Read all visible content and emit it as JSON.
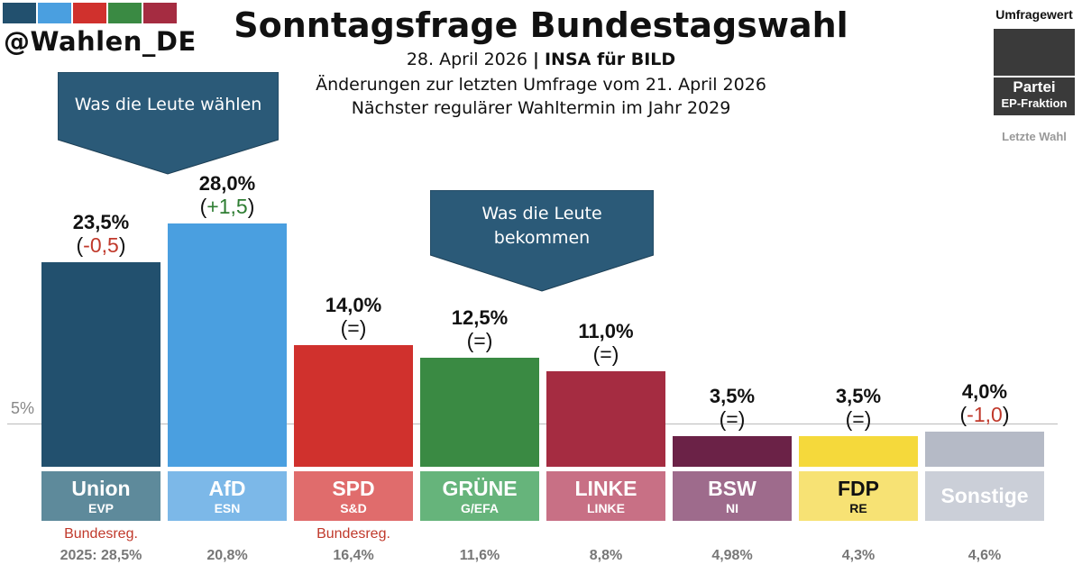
{
  "header": {
    "handle": "@Wahlen_DE",
    "title": "Sonntagsfrage Bundestagswahl",
    "date": "28. April 2026",
    "separator": "|",
    "source": "INSA für BILD",
    "changes_note": "Änderungen zur letzten Umfrage vom 21. April 2026",
    "next_election": "Nächster regulärer Wahltermin im Jahr 2029"
  },
  "logo_colors": [
    "#22506e",
    "#4a9fe0",
    "#d0312d",
    "#3a8a43",
    "#a52c41"
  ],
  "legend": {
    "umfragewert": "Umfragewert",
    "partei": "Partei",
    "ep_fraktion": "EP-Fraktion",
    "letzte_wahl": "Letzte Wahl"
  },
  "callouts": {
    "left": "Was die Leute wählen",
    "right_line1": "Was die Leute",
    "right_line2": "bekommen"
  },
  "reference_line": "5%",
  "chart_data": {
    "type": "bar",
    "title": "Sonntagsfrage Bundestagswahl",
    "categories": [
      "Union",
      "AfD",
      "SPD",
      "GRÜNE",
      "LINKE",
      "BSW",
      "FDP",
      "Sonstige"
    ],
    "values": [
      23.5,
      28.0,
      14.0,
      12.5,
      11.0,
      3.5,
      3.5,
      4.0
    ],
    "value_labels": [
      "23,5%",
      "28,0%",
      "14,0%",
      "12,5%",
      "11,0%",
      "3,5%",
      "3,5%",
      "4,0%"
    ],
    "change_labels": [
      "-0,5",
      "+1,5",
      "=",
      "=",
      "=",
      "=",
      "=",
      "-1,0"
    ],
    "change_colors": [
      "#c0392b",
      "#2e7d32",
      "#111111",
      "#111111",
      "#111111",
      "#111111",
      "#111111",
      "#c0392b"
    ],
    "ep_fractions": [
      "EVP",
      "ESN",
      "S&D",
      "G/EFA",
      "LINKE",
      "NI",
      "RE",
      ""
    ],
    "government": [
      "Bundesreg.",
      "",
      "Bundesreg.",
      "",
      "",
      "",
      "",
      ""
    ],
    "last_election": [
      "2025: 28,5%",
      "20,8%",
      "16,4%",
      "11,6%",
      "8,8%",
      "4,98%",
      "4,3%",
      "4,6%"
    ],
    "bar_colors": [
      "#22506e",
      "#4a9fe0",
      "#d0312d",
      "#3a8a43",
      "#a52c41",
      "#6b2247",
      "#f5d93b",
      "#b5bac6"
    ],
    "label_colors": [
      "#5e8a9b",
      "#7cb8e8",
      "#e06c6c",
      "#66b47b",
      "#c87085",
      "#9e6b8c",
      "#f7e274",
      "#cbcfd8"
    ],
    "label_text_colors": [
      "#ffffff",
      "#ffffff",
      "#ffffff",
      "#ffffff",
      "#ffffff",
      "#ffffff",
      "#111111",
      "#ffffff"
    ],
    "reference_value": 5,
    "ylim": [
      0,
      28
    ]
  }
}
